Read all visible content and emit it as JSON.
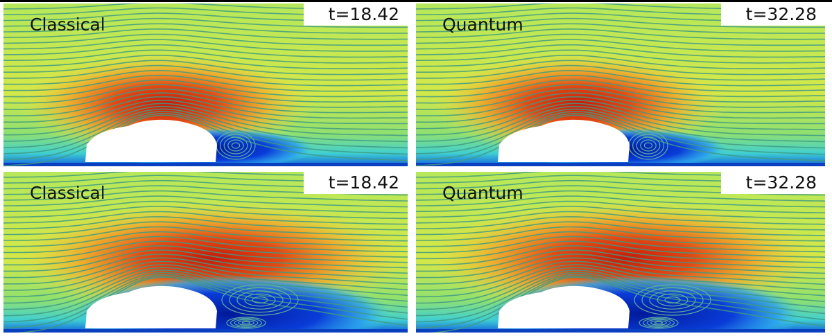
{
  "panels": [
    {
      "label": "Classical",
      "time": "t=18.42"
    },
    {
      "label": "Quantum",
      "time": "t=32.28"
    },
    {
      "label": "Classical",
      "time": "t=18.42"
    },
    {
      "label": "Quantum",
      "time": "t=32.28"
    }
  ]
}
